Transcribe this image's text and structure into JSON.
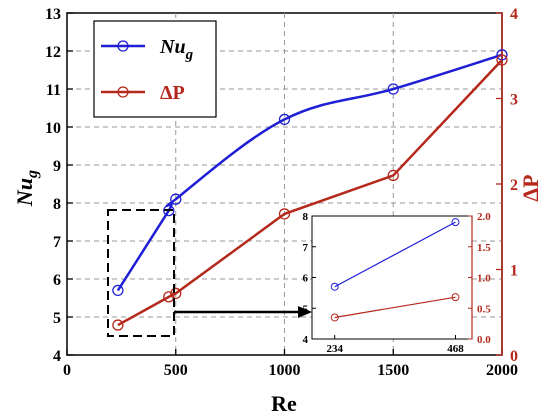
{
  "chart_data": {
    "type": "line",
    "xlabel": "Re",
    "x_ticks": [
      "0",
      "500",
      "1000",
      "1500",
      "2000"
    ],
    "xlim": [
      0,
      2000
    ],
    "y_left": {
      "label_main": "Nu",
      "label_sub": "g",
      "ylim": [
        4,
        13
      ],
      "ticks": [
        "4",
        "5",
        "6",
        "7",
        "8",
        "9",
        "10",
        "11",
        "12",
        "13"
      ],
      "color": "#000000"
    },
    "y_right": {
      "label": "ΔP",
      "ylim": [
        0,
        4
      ],
      "ticks": [
        "0",
        "1",
        "2",
        "3",
        "4"
      ],
      "color": "#b5281c"
    },
    "grid": true,
    "legend_position": "top-left",
    "series": [
      {
        "name_main": "Nu",
        "name_sub": "g",
        "axis": "left",
        "color": "#1f1fd6",
        "x": [
          234,
          468,
          500,
          1000,
          1500,
          2000
        ],
        "y": [
          5.7,
          7.8,
          8.1,
          10.2,
          11.0,
          11.9
        ]
      },
      {
        "name": "ΔP",
        "axis": "right",
        "color": "#b5281c",
        "x": [
          234,
          468,
          500,
          1000,
          1500,
          2000
        ],
        "y": [
          0.35,
          0.68,
          0.72,
          1.65,
          2.1,
          3.45
        ]
      }
    ],
    "inset": {
      "x_ticks": [
        "234",
        "468"
      ],
      "xlim": [
        190,
        500
      ],
      "y_left": {
        "ylim": [
          4,
          8
        ],
        "ticks": [
          "4",
          "5",
          "6",
          "7",
          "8"
        ]
      },
      "y_right": {
        "ylim": [
          0,
          2.0
        ],
        "ticks": [
          "0.0",
          "0.5",
          "1.0",
          "1.5",
          "2.0"
        ]
      },
      "series": [
        {
          "axis": "left",
          "color": "#1f1fd6",
          "x": [
            234,
            468
          ],
          "y": [
            5.7,
            7.8
          ]
        },
        {
          "axis": "right",
          "color": "#b5281c",
          "x": [
            234,
            468
          ],
          "y": [
            0.35,
            0.68
          ]
        }
      ]
    }
  }
}
